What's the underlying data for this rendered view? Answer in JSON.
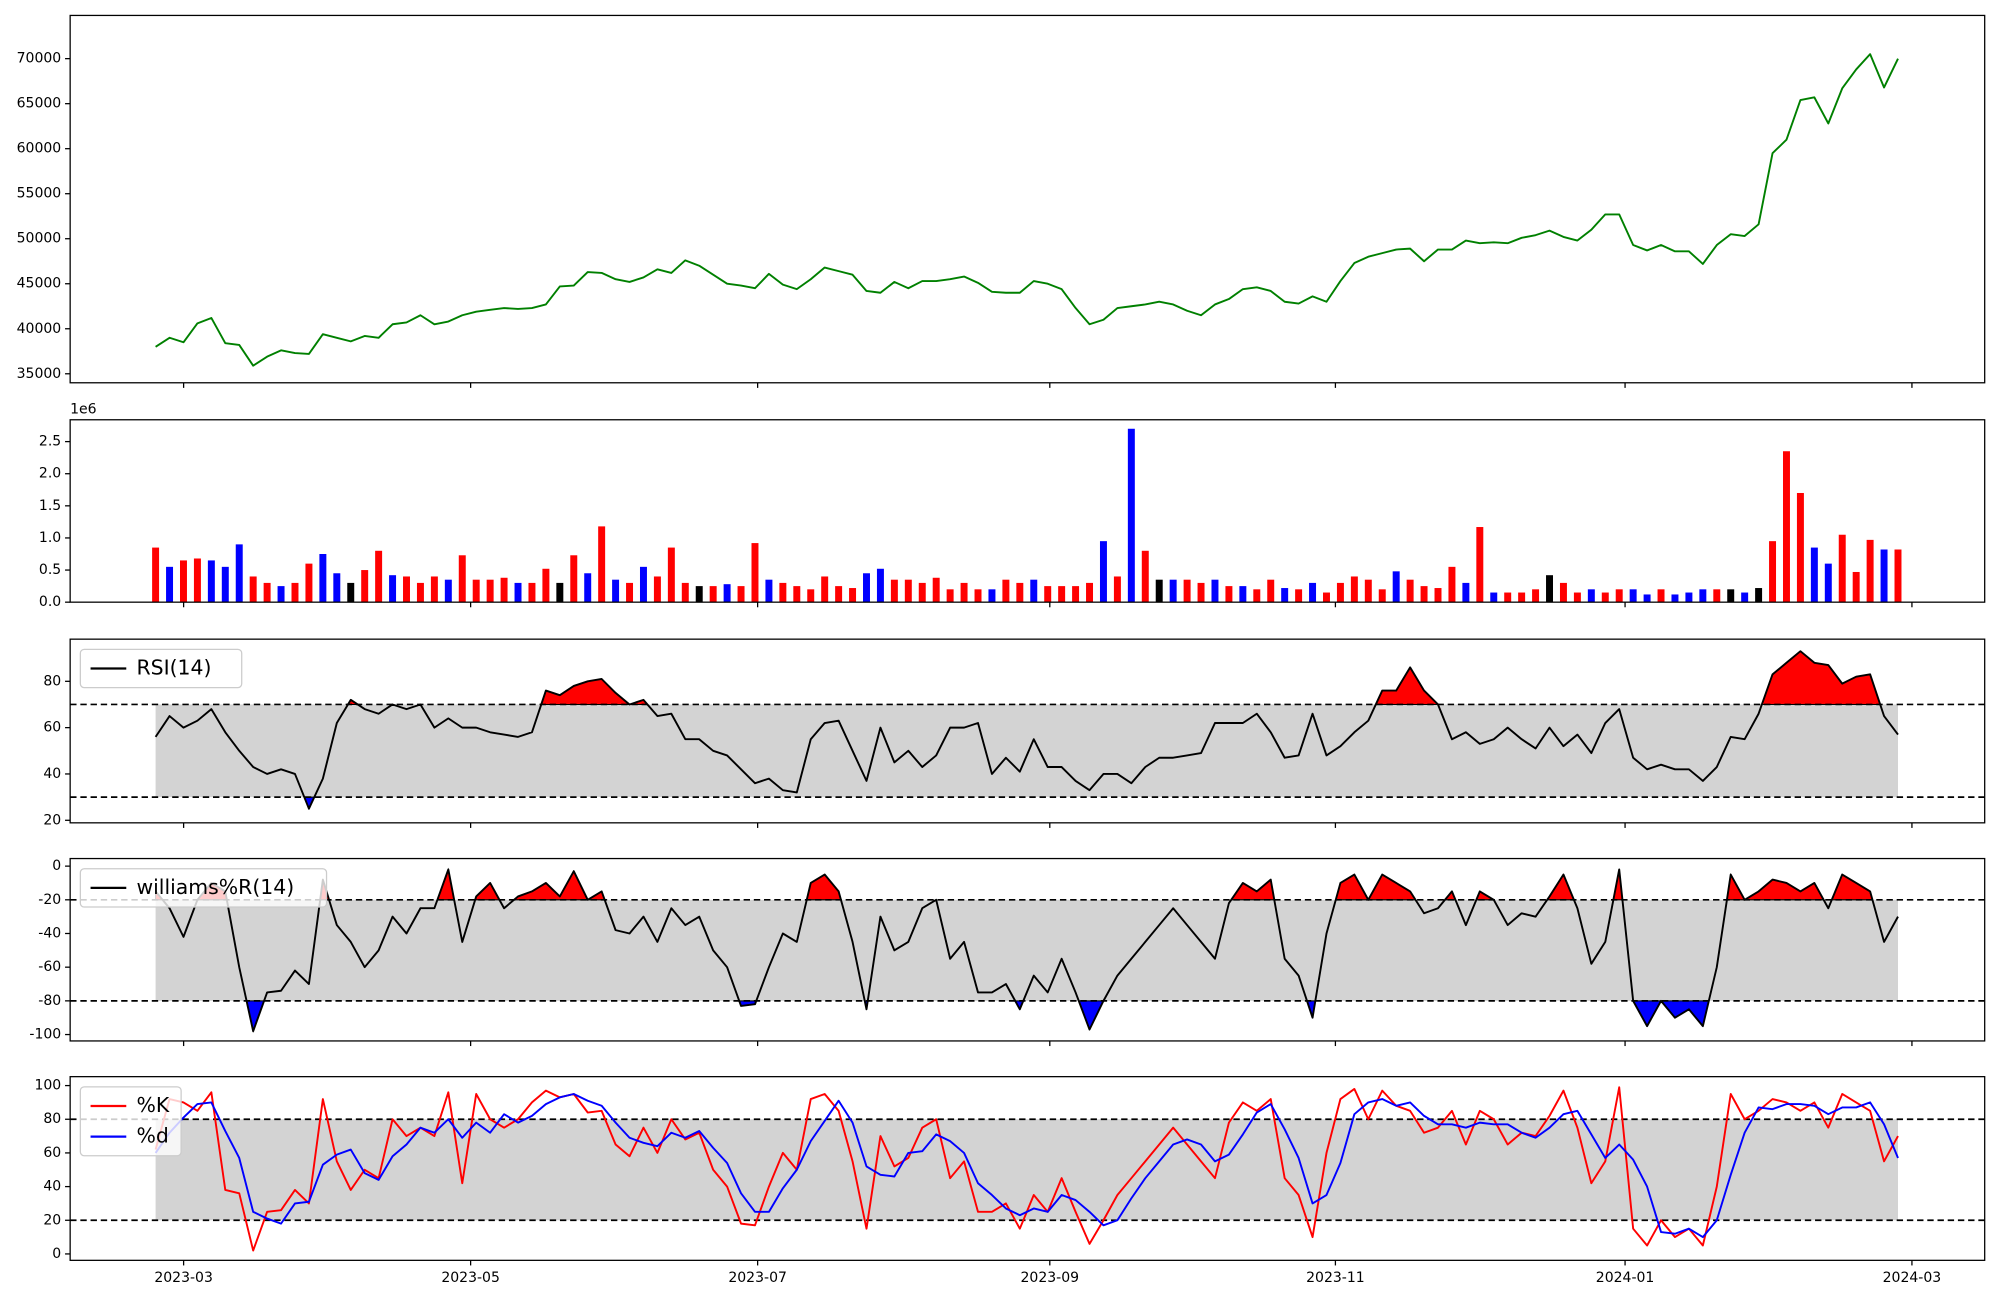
{
  "chart_data": [
    {
      "type": "line",
      "xlim": [
        -6.13,
        131.22
      ],
      "ylim": [
        34000,
        74800
      ],
      "yticks": [
        35000,
        40000,
        45000,
        50000,
        55000,
        60000,
        65000,
        70000
      ],
      "series": [
        {
          "color": "green",
          "values": [
            38000,
            39000,
            38500,
            40600,
            41200,
            38400,
            38200,
            35900,
            36900,
            37600,
            37300,
            37200,
            39400,
            39000,
            38600,
            39200,
            39000,
            40500,
            40700,
            41500,
            40500,
            40800,
            41500,
            41900,
            42100,
            42300,
            42200,
            42300,
            42700,
            44700,
            44800,
            46300,
            46200,
            45500,
            45200,
            45700,
            46600,
            46200,
            47600,
            47000,
            46000,
            45000,
            44800,
            44500,
            46100,
            44900,
            44400,
            45500,
            46800,
            46400,
            46000,
            44200,
            44000,
            45200,
            44500,
            45300,
            45300,
            45500,
            45800,
            45100,
            44100,
            44000,
            44000,
            45300,
            45000,
            44400,
            42300,
            40500,
            41000,
            42300,
            42500,
            42700,
            43000,
            42700,
            42000,
            41500,
            42700,
            43300,
            44400,
            44600,
            44200,
            43000,
            42800,
            43600,
            43000,
            45300,
            47300,
            48000,
            48400,
            48800,
            48900,
            47500,
            48800,
            48800,
            49800,
            49500,
            49600,
            49500,
            50100,
            50400,
            50900,
            50200,
            49800,
            51000,
            52700,
            52700,
            49300,
            48700,
            49300,
            48600,
            48600,
            47200,
            49300,
            50500,
            50300,
            51600,
            59500,
            61000,
            65400,
            65700,
            62800,
            66700,
            68800,
            70500,
            66800,
            70000
          ]
        }
      ]
    },
    {
      "type": "bar",
      "xlim": [
        -6.13,
        131.22
      ],
      "ylim": [
        0,
        2.84
      ],
      "y_offset_label": "1e6",
      "yticks": [
        {
          "value": 0,
          "label": "0.0"
        },
        {
          "value": 0.5,
          "label": "0.5"
        },
        {
          "value": 1,
          "label": "1.0"
        },
        {
          "value": 1.5,
          "label": "1.5"
        },
        {
          "value": 2,
          "label": "2.0"
        },
        {
          "value": 2.5,
          "label": "2.5"
        }
      ],
      "series": [
        {
          "values": [
            0.85,
            0.55,
            0.65,
            0.68,
            0.65,
            0.55,
            0.9,
            0.4,
            0.3,
            0.25,
            0.3,
            0.6,
            0.75,
            0.45,
            0.3,
            0.5,
            0.8,
            0.42,
            0.4,
            0.3,
            0.4,
            0.35,
            0.73,
            0.35,
            0.35,
            0.38,
            0.3,
            0.3,
            0.52,
            0.3,
            0.73,
            0.45,
            1.18,
            0.35,
            0.3,
            0.55,
            0.4,
            0.85,
            0.3,
            0.25,
            0.25,
            0.28,
            0.25,
            0.92,
            0.35,
            0.3,
            0.25,
            0.2,
            0.4,
            0.25,
            0.22,
            0.45,
            0.52,
            0.35,
            0.35,
            0.3,
            0.38,
            0.2,
            0.3,
            0.2,
            0.2,
            0.35,
            0.3,
            0.35,
            0.25,
            0.25,
            0.25,
            0.3,
            0.95,
            0.4,
            2.7,
            0.8,
            0.35,
            0.35,
            0.35,
            0.3,
            0.35,
            0.25,
            0.25,
            0.2,
            0.35,
            0.22,
            0.2,
            0.3,
            0.15,
            0.3,
            0.4,
            0.35,
            0.2,
            0.48,
            0.35,
            0.25,
            0.22,
            0.55,
            0.3,
            1.17,
            0.15,
            0.15,
            0.15,
            0.2,
            0.42,
            0.3,
            0.15,
            0.2,
            0.15,
            0.2,
            0.2,
            0.12,
            0.2,
            0.12,
            0.15,
            0.2,
            0.2,
            0.2,
            0.15,
            0.22,
            0.95,
            2.35,
            1.7,
            0.85,
            0.6,
            1.05,
            0.47,
            0.97,
            0.82,
            0.82
          ],
          "colors": [
            "red",
            "blue",
            "red",
            "red",
            "blue",
            "blue",
            "blue",
            "red",
            "red",
            "blue",
            "red",
            "red",
            "blue",
            "blue",
            "black",
            "red",
            "red",
            "blue",
            "red",
            "red",
            "red",
            "blue",
            "red",
            "red",
            "red",
            "red",
            "blue",
            "red",
            "red",
            "black",
            "red",
            "blue",
            "red",
            "blue",
            "red",
            "blue",
            "red",
            "red",
            "red",
            "black",
            "red",
            "blue",
            "red",
            "red",
            "blue",
            "red",
            "red",
            "red",
            "red",
            "red",
            "red",
            "blue",
            "blue",
            "red",
            "red",
            "red",
            "red",
            "red",
            "red",
            "red",
            "blue",
            "red",
            "red",
            "blue",
            "red",
            "red",
            "red",
            "red",
            "blue",
            "red",
            "blue",
            "red",
            "black",
            "blue",
            "red",
            "red",
            "blue",
            "red",
            "blue",
            "red",
            "red",
            "blue",
            "red",
            "blue",
            "red",
            "red",
            "red",
            "red",
            "red",
            "blue",
            "red",
            "red",
            "red",
            "red",
            "blue",
            "red",
            "blue",
            "red",
            "red",
            "red",
            "black",
            "red",
            "red",
            "blue",
            "red",
            "red",
            "blue",
            "blue",
            "red",
            "blue",
            "blue",
            "blue",
            "red",
            "black",
            "blue",
            "black",
            "red",
            "red",
            "red",
            "blue",
            "blue",
            "red",
            "red",
            "red",
            "blue",
            "red"
          ]
        }
      ]
    },
    {
      "type": "line",
      "xlim": [
        -6.13,
        131.22
      ],
      "ylim": [
        18.9,
        98.2
      ],
      "yticks": [
        20,
        40,
        60,
        80
      ],
      "levels": [
        30,
        70
      ],
      "band_color": "lightgray",
      "fill_above_color": "red",
      "fill_below_color": "blue",
      "legend": "upper left",
      "series": [
        {
          "name": "RSI(14)",
          "color": "black",
          "values": [
            56,
            65,
            60,
            63,
            68,
            58,
            50,
            43,
            40,
            42,
            40,
            25,
            38,
            62,
            72,
            68,
            66,
            70,
            68,
            70,
            60,
            64,
            60,
            60,
            58,
            57,
            56,
            58,
            76,
            74,
            78,
            80,
            81,
            75,
            70,
            72,
            65,
            66,
            55,
            55,
            50,
            48,
            42,
            36,
            38,
            33,
            32,
            55,
            62,
            63,
            50,
            37,
            60,
            45,
            50,
            43,
            48,
            60,
            60,
            62,
            40,
            47,
            41,
            55,
            43,
            43,
            37,
            33,
            40,
            40,
            36,
            43,
            47,
            47,
            48,
            49,
            62,
            62,
            62,
            66,
            58,
            47,
            48,
            66,
            48,
            52,
            58,
            63,
            76,
            76,
            86,
            76,
            70,
            55,
            58,
            53,
            55,
            60,
            55,
            51,
            60,
            52,
            57,
            49,
            62,
            68,
            47,
            42,
            44,
            42,
            42,
            37,
            43,
            56,
            55,
            66,
            83,
            88,
            93,
            88,
            87,
            79,
            82,
            83,
            65,
            57
          ]
        }
      ]
    },
    {
      "type": "line",
      "xlim": [
        -6.13,
        131.22
      ],
      "ylim": [
        -103.8,
        4.5
      ],
      "yticks": [
        -100,
        -80,
        -60,
        -40,
        -20,
        0
      ],
      "levels": [
        -80,
        -20
      ],
      "band_color": "lightgray",
      "fill_above_color": "red",
      "fill_below_color": "blue",
      "legend": "upper left",
      "series": [
        {
          "name": "williams%R(14)",
          "color": "black",
          "values": [
            -15,
            -25,
            -42,
            -20,
            -10,
            -15,
            -60,
            -98,
            -75,
            -74,
            -62,
            -70,
            -8,
            -35,
            -45,
            -60,
            -50,
            -30,
            -40,
            -25,
            -25,
            -2,
            -45,
            -18,
            -10,
            -25,
            -18,
            -15,
            -10,
            -18,
            -3,
            -20,
            -15,
            -38,
            -40,
            -30,
            -45,
            -25,
            -35,
            -30,
            -50,
            -60,
            -83,
            -82,
            -60,
            -40,
            -45,
            -10,
            -5,
            -15,
            -45,
            -85,
            -30,
            -50,
            -45,
            -25,
            -20,
            -55,
            -45,
            -75,
            -75,
            -70,
            -85,
            -65,
            -75,
            -55,
            -75,
            -97,
            -80,
            -65,
            -55,
            -45,
            -35,
            -25,
            -35,
            -45,
            -55,
            -22,
            -10,
            -15,
            -8,
            -55,
            -65,
            -90,
            -40,
            -10,
            -5,
            -20,
            -5,
            -10,
            -15,
            -28,
            -25,
            -15,
            -35,
            -15,
            -20,
            -35,
            -28,
            -30,
            -18,
            -5,
            -25,
            -58,
            -45,
            -2,
            -80,
            -95,
            -80,
            -90,
            -85,
            -95,
            -60,
            -5,
            -20,
            -15,
            -8,
            -10,
            -15,
            -10,
            -25,
            -5,
            -10,
            -15,
            -45,
            -30
          ]
        }
      ]
    },
    {
      "type": "line",
      "xlim": [
        -6.13,
        131.22
      ],
      "ylim": [
        -3.8,
        105.3
      ],
      "yticks": [
        0,
        20,
        40,
        60,
        80,
        100
      ],
      "levels": [
        20,
        80
      ],
      "band_color": "lightgray",
      "legend": "upper left",
      "xticks": [
        {
          "value": 2.01,
          "label": "2023-03"
        },
        {
          "value": 22.6,
          "label": "2023-05"
        },
        {
          "value": 43.19,
          "label": "2023-07"
        },
        {
          "value": 64.15,
          "label": "2023-09"
        },
        {
          "value": 84.64,
          "label": "2023-11"
        },
        {
          "value": 105.42,
          "label": "2024-01"
        },
        {
          "value": 126.0,
          "label": "2024-03"
        }
      ],
      "series": [
        {
          "name": "%K",
          "color": "red",
          "values": [
            62,
            92,
            90,
            85,
            96,
            38,
            36,
            2,
            25,
            26,
            38,
            30,
            92,
            55,
            38,
            50,
            45,
            80,
            70,
            75,
            70,
            96,
            42,
            95,
            80,
            75,
            80,
            90,
            97,
            93,
            95,
            84,
            85,
            65,
            58,
            75,
            60,
            80,
            68,
            72,
            50,
            40,
            18,
            17,
            40,
            60,
            50,
            92,
            95,
            85,
            55,
            15,
            70,
            52,
            57,
            75,
            80,
            45,
            55,
            25,
            25,
            30,
            15,
            35,
            25,
            45,
            25,
            6,
            20,
            35,
            45,
            55,
            65,
            75,
            65,
            55,
            45,
            78,
            90,
            85,
            92,
            45,
            35,
            10,
            60,
            92,
            98,
            80,
            97,
            88,
            85,
            72,
            75,
            85,
            65,
            85,
            80,
            65,
            72,
            70,
            82,
            97,
            75,
            42,
            55,
            99,
            15,
            5,
            20,
            10,
            15,
            5,
            40,
            95,
            80,
            85,
            92,
            90,
            85,
            90,
            75,
            95,
            90,
            85,
            55,
            70
          ]
        },
        {
          "name": "%d",
          "color": "blue",
          "values": [
            60,
            72,
            81,
            89,
            90,
            73,
            57,
            25,
            21,
            18,
            30,
            31,
            53,
            59,
            62,
            48,
            44,
            58,
            65,
            75,
            72,
            80,
            69,
            78,
            72,
            83,
            78,
            82,
            89,
            93,
            95,
            91,
            88,
            78,
            69,
            66,
            64,
            72,
            69,
            73,
            63,
            54,
            36,
            25,
            25,
            39,
            50,
            67,
            79,
            91,
            78,
            52,
            47,
            46,
            60,
            61,
            71,
            67,
            60,
            42,
            35,
            27,
            23,
            27,
            25,
            35,
            32,
            25,
            17,
            20,
            33,
            45,
            55,
            65,
            68,
            65,
            55,
            59,
            71,
            84,
            89,
            74,
            57,
            30,
            35,
            54,
            83,
            90,
            92,
            88,
            90,
            82,
            77,
            77,
            75,
            78,
            77,
            77,
            72,
            69,
            75,
            83,
            85,
            71,
            57,
            65,
            56,
            40,
            13,
            12,
            15,
            10,
            20,
            47,
            72,
            87,
            86,
            89,
            89,
            88,
            83,
            87,
            87,
            90,
            77,
            57
          ]
        }
      ]
    }
  ]
}
